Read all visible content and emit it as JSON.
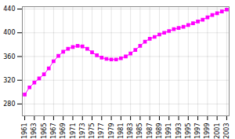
{
  "chart_data": {
    "type": "line",
    "x": [
      1961,
      1962,
      1963,
      1964,
      1965,
      1966,
      1967,
      1968,
      1969,
      1970,
      1971,
      1972,
      1973,
      1974,
      1975,
      1976,
      1977,
      1978,
      1979,
      1980,
      1981,
      1982,
      1983,
      1984,
      1985,
      1986,
      1987,
      1988,
      1989,
      1990,
      1991,
      1992,
      1993,
      1994,
      1995,
      1996,
      1997,
      1998,
      1999,
      2000,
      2001,
      2002,
      2003
    ],
    "values": [
      296,
      308,
      316,
      323,
      330,
      340,
      352,
      361,
      368,
      373,
      376,
      378,
      377,
      373,
      367,
      362,
      358,
      356,
      355,
      355,
      357,
      360,
      365,
      371,
      378,
      385,
      390,
      393,
      397,
      400,
      403,
      406,
      408,
      410,
      413,
      416,
      419,
      422,
      426,
      430,
      433,
      436,
      439
    ],
    "color": "#FF00FF",
    "marker": "square",
    "xlim": [
      1960.5,
      2003.5
    ],
    "xticks": [
      1961,
      1963,
      1965,
      1967,
      1969,
      1971,
      1973,
      1975,
      1977,
      1979,
      1981,
      1983,
      1985,
      1987,
      1989,
      1991,
      1993,
      1995,
      1997,
      1999,
      2001,
      2003
    ],
    "ylim": [
      260,
      444
    ],
    "yticks": [
      280,
      320,
      360,
      400,
      440
    ],
    "grid": true
  }
}
